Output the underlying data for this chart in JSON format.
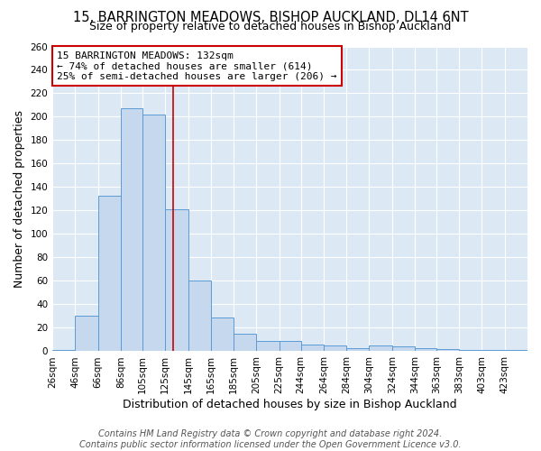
{
  "title": "15, BARRINGTON MEADOWS, BISHOP AUCKLAND, DL14 6NT",
  "subtitle": "Size of property relative to detached houses in Bishop Auckland",
  "xlabel": "Distribution of detached houses by size in Bishop Auckland",
  "ylabel": "Number of detached properties",
  "bin_labels": [
    "26sqm",
    "46sqm",
    "66sqm",
    "86sqm",
    "105sqm",
    "125sqm",
    "145sqm",
    "165sqm",
    "185sqm",
    "205sqm",
    "225sqm",
    "244sqm",
    "264sqm",
    "284sqm",
    "304sqm",
    "324sqm",
    "344sqm",
    "363sqm",
    "383sqm",
    "403sqm",
    "423sqm"
  ],
  "bin_edges": [
    26,
    46,
    66,
    86,
    105,
    125,
    145,
    165,
    185,
    205,
    225,
    244,
    264,
    284,
    304,
    324,
    344,
    363,
    383,
    403,
    423,
    443
  ],
  "bar_heights": [
    1,
    30,
    133,
    207,
    202,
    121,
    60,
    29,
    15,
    9,
    9,
    6,
    5,
    3,
    5,
    4,
    3,
    2,
    1,
    1,
    1
  ],
  "bar_color": "#c5d8ed",
  "bar_edgecolor": "#5b9bd5",
  "ylim": [
    0,
    260
  ],
  "yticks": [
    0,
    20,
    40,
    60,
    80,
    100,
    120,
    140,
    160,
    180,
    200,
    220,
    240,
    260
  ],
  "property_size": 132,
  "red_line_color": "#cc0000",
  "annotation_line1": "15 BARRINGTON MEADOWS: 132sqm",
  "annotation_line2": "← 74% of detached houses are smaller (614)",
  "annotation_line3": "25% of semi-detached houses are larger (206) →",
  "annotation_box_color": "#ffffff",
  "annotation_box_edgecolor": "#cc0000",
  "footer_line1": "Contains HM Land Registry data © Crown copyright and database right 2024.",
  "footer_line2": "Contains public sector information licensed under the Open Government Licence v3.0.",
  "fig_background_color": "#ffffff",
  "plot_background_color": "#dce9f5",
  "grid_color": "#ffffff",
  "title_fontsize": 10.5,
  "subtitle_fontsize": 9,
  "axis_label_fontsize": 9,
  "tick_fontsize": 7.5,
  "annotation_fontsize": 8,
  "footer_fontsize": 7
}
